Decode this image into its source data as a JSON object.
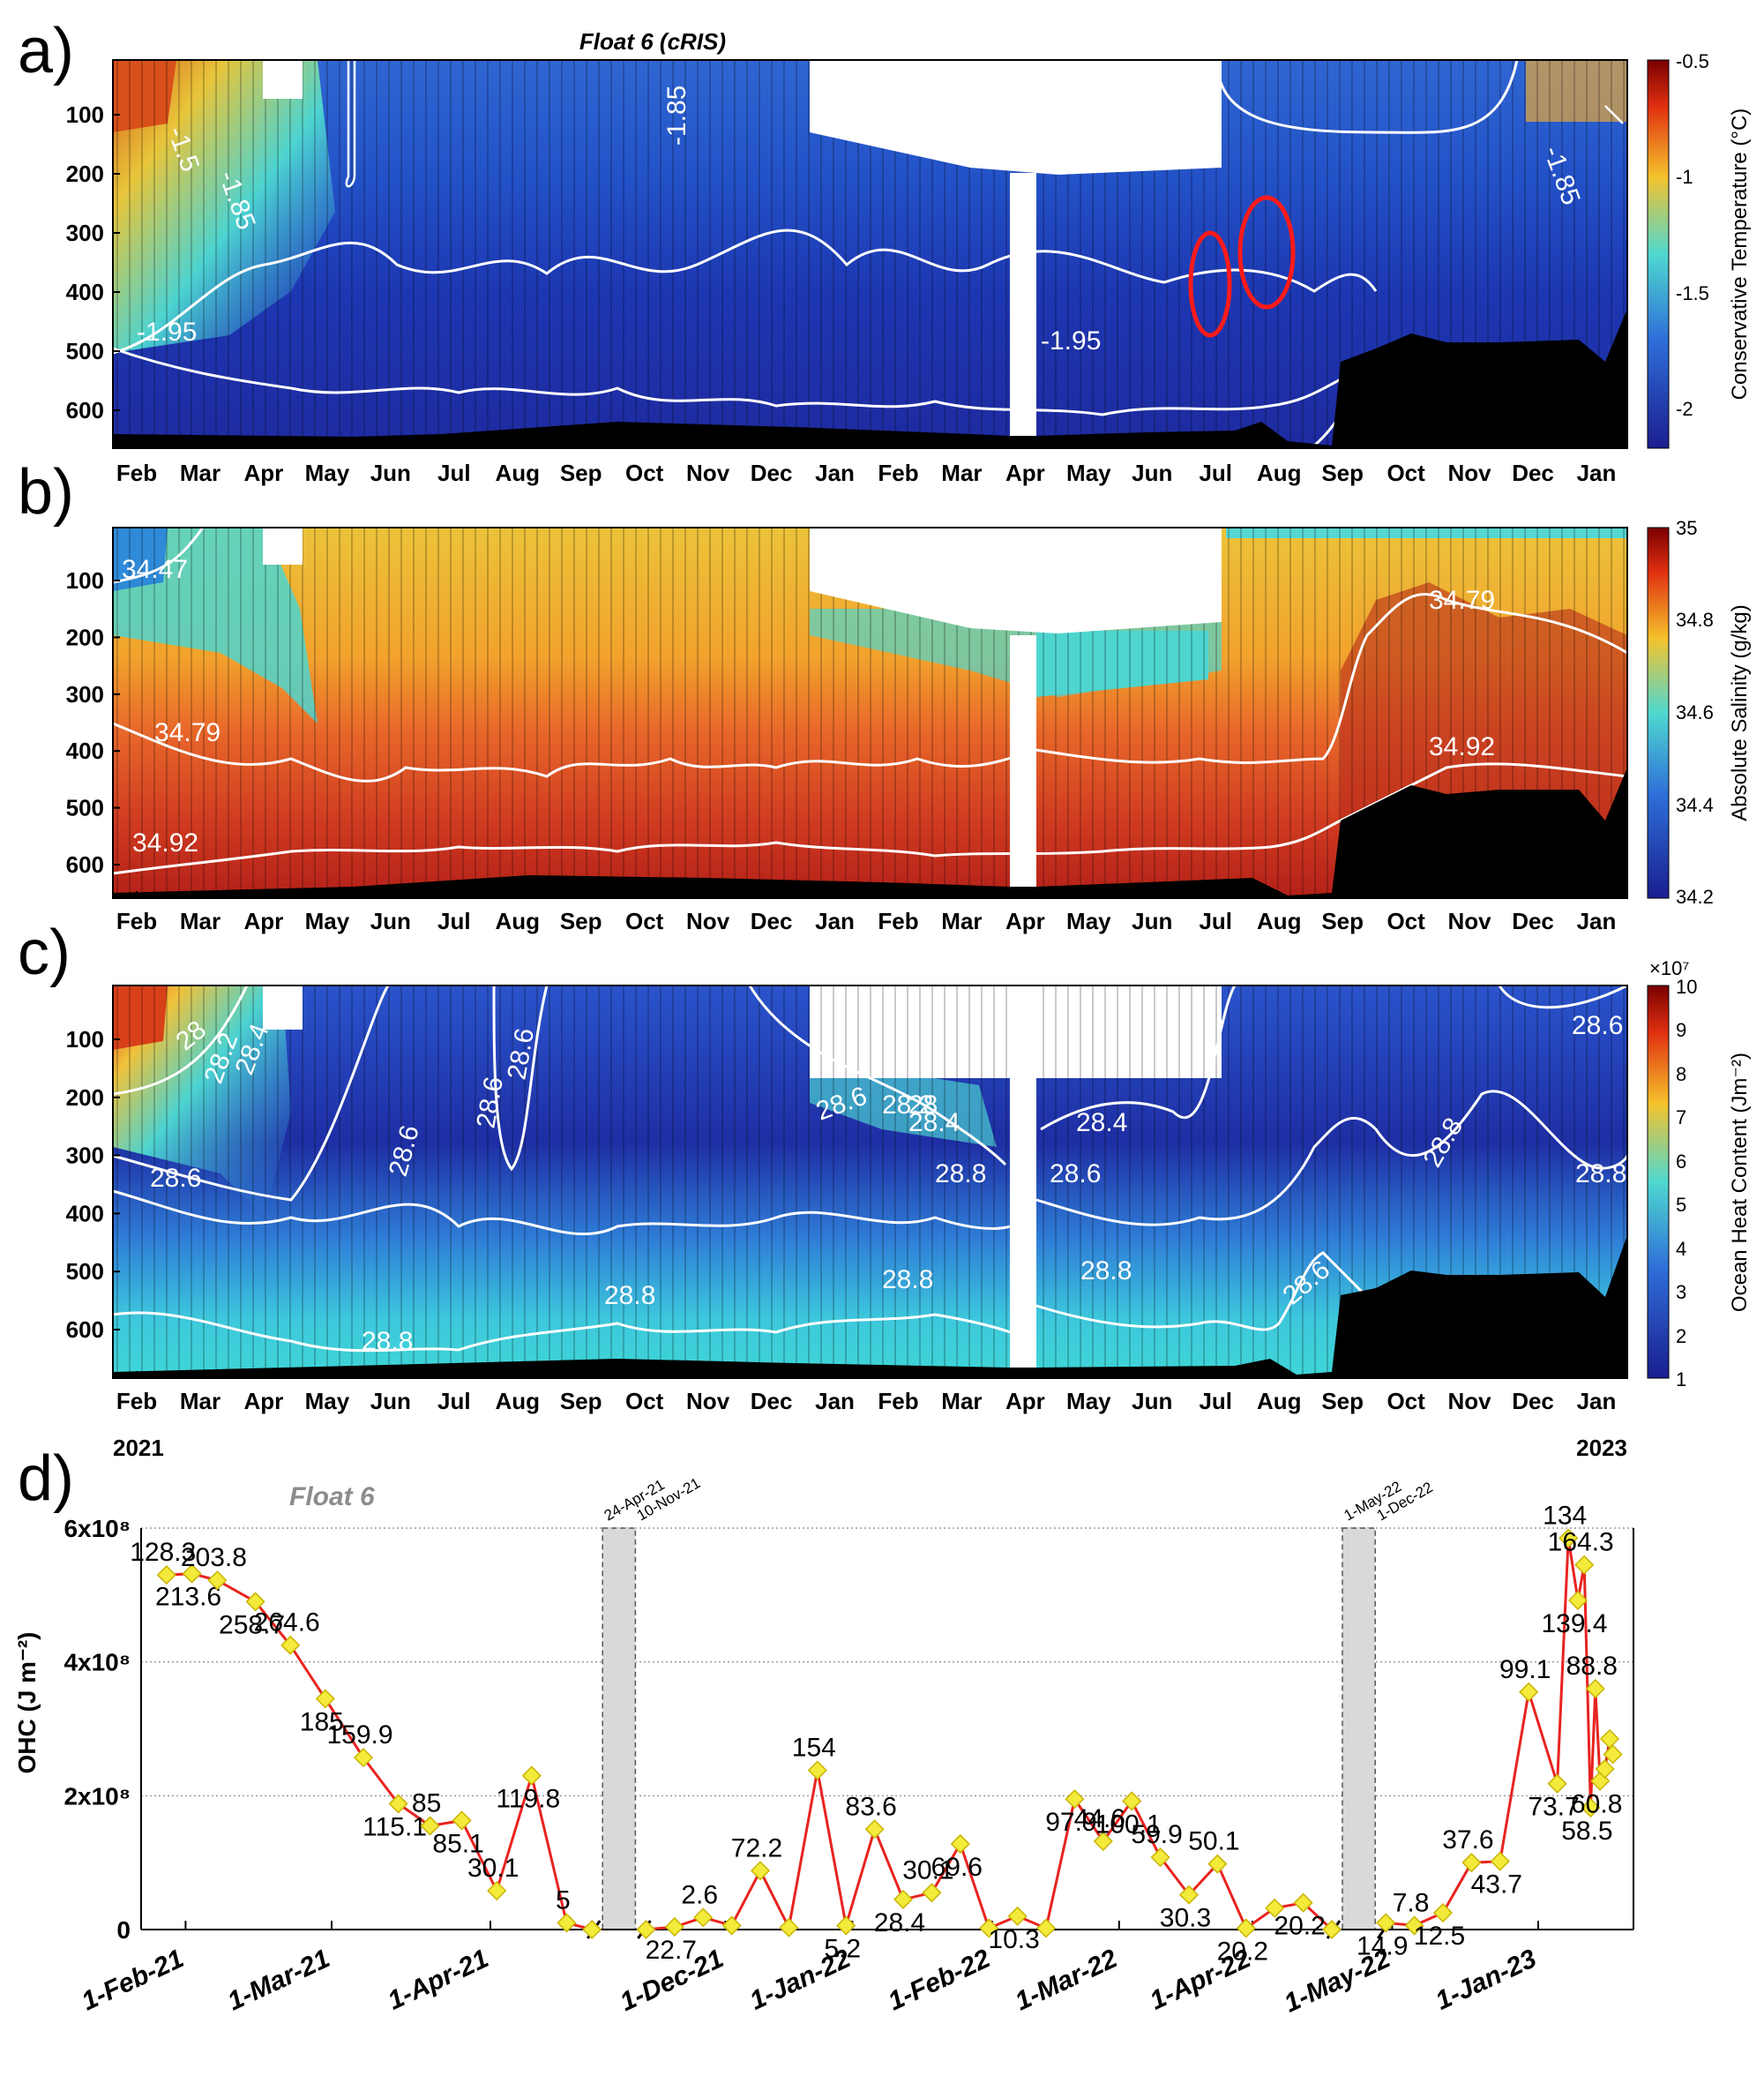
{
  "panels": [
    {
      "letter": "a)",
      "title": "Float 6 (cRIS)",
      "colorbar_label": "Conservative Temperature (°C)",
      "colorbar_ticks": [
        "-0.5",
        "-1",
        "-1.5",
        "-2"
      ],
      "contour_labels": [
        "-1.5",
        "-1.85",
        "-1.85",
        "-1.85",
        "-1.95",
        "-1.95"
      ]
    },
    {
      "letter": "b)",
      "colorbar_label": "Absolute Salinity (g/kg)",
      "colorbar_ticks": [
        "35",
        "34.8",
        "34.6",
        "34.4",
        "34.2"
      ],
      "contour_labels": [
        "34.47",
        "34.79",
        "34.92",
        "34.79",
        "34.92"
      ]
    },
    {
      "letter": "c)",
      "colorbar_label": "Ocean Heat Content (Jm⁻²)",
      "colorbar_exponent": "×10⁷",
      "colorbar_ticks": [
        "10",
        "9",
        "8",
        "7",
        "6",
        "5",
        "4",
        "3",
        "2",
        "1"
      ],
      "contour_labels": [
        "28",
        "28.2",
        "28.4",
        "28.6",
        "28.6",
        "28.6",
        "28.6",
        "28.6",
        "28.4",
        "28.2",
        "28",
        "28.4",
        "28.6",
        "28.8",
        "28.8",
        "28.8",
        "28.8",
        "28.8",
        "28.8",
        "28.6",
        "28.6",
        "28.8"
      ]
    },
    {
      "letter": "d)"
    }
  ],
  "shared_axes": {
    "depth_ticks": [
      "100",
      "200",
      "300",
      "400",
      "500",
      "600"
    ],
    "month_ticks": [
      "Feb",
      "Mar",
      "Apr",
      "May",
      "Jun",
      "Jul",
      "Aug",
      "Sep",
      "Oct",
      "Nov",
      "Dec",
      "Jan",
      "Feb",
      "Mar",
      "Apr",
      "May",
      "Jun",
      "Jul",
      "Aug",
      "Sep",
      "Oct",
      "Nov",
      "Dec",
      "Jan"
    ],
    "year_start": "2021",
    "year_end": "2023"
  },
  "colors": {
    "contour": "#ffffff",
    "seabed": "#000000",
    "line": "#e8231f",
    "marker": "#f3ea3b",
    "gap": "#d9d9d9",
    "highlight": "#ff1a1a",
    "float_label": "#8c8c8c"
  },
  "chart_data": {
    "type": "line",
    "title": "Float 6",
    "ylabel": "OHC (J m⁻²)",
    "ylim": [
      0,
      600000000
    ],
    "y_ticks": [
      {
        "value": 0,
        "label": "0"
      },
      {
        "value": 200000000,
        "label": "2x10⁸"
      },
      {
        "value": 400000000,
        "label": "4x10⁸"
      },
      {
        "value": 600000000,
        "label": "6x10⁸"
      }
    ],
    "x_ticks": [
      "1-Feb-21",
      "1-Mar-21",
      "1-Apr-21",
      "1-Dec-21",
      "1-Jan-22",
      "1-Feb-22",
      "1-Mar-22",
      "1-Apr-22",
      "1-May-22",
      "1-Jan-23"
    ],
    "gaps": [
      {
        "label_start": "24-Apr-21",
        "label_end": "10-Nov-21"
      },
      {
        "label_start": "1-May-22",
        "label_end": "1-Dec-22"
      }
    ],
    "series": [
      {
        "name": "OHC",
        "points": [
          {
            "t": 0,
            "value": 530000000,
            "label": "128.3"
          },
          {
            "t": 0.8,
            "value": 532000000,
            "label": "213.6"
          },
          {
            "t": 1.6,
            "value": 522000000,
            "label": "203.8"
          },
          {
            "t": 2.8,
            "value": 490000000,
            "label": "258.7"
          },
          {
            "t": 3.9,
            "value": 425000000,
            "label": "264.6"
          },
          {
            "t": 5.0,
            "value": 345000000,
            "label": "185"
          },
          {
            "t": 6.2,
            "value": 257000000,
            "label": "159.9"
          },
          {
            "t": 7.3,
            "value": 188000000,
            "label": "115.1"
          },
          {
            "t": 8.3,
            "value": 155000000,
            "label": "85"
          },
          {
            "t": 9.3,
            "value": 163000000,
            "label": "85.1"
          },
          {
            "t": 10.4,
            "value": 58000000,
            "label": "30.1"
          },
          {
            "t": 11.5,
            "value": 230000000,
            "label": "119.8"
          },
          {
            "t": 12.6,
            "value": 10000000,
            "label": "5"
          },
          {
            "t": 13.4,
            "value": 0,
            "label": ""
          },
          {
            "t": 15.1,
            "value": 0,
            "label": ""
          },
          {
            "t": 16.0,
            "value": 4000000,
            "label": "22.7"
          },
          {
            "t": 16.9,
            "value": 18000000,
            "label": "2.6"
          },
          {
            "t": 17.8,
            "value": 6000000,
            "label": ""
          },
          {
            "t": 18.7,
            "value": 88000000,
            "label": "72.2"
          },
          {
            "t": 19.6,
            "value": 3000000,
            "label": ""
          },
          {
            "t": 20.5,
            "value": 238000000,
            "label": "154"
          },
          {
            "t": 21.4,
            "value": 6000000,
            "label": "5.2"
          },
          {
            "t": 22.3,
            "value": 150000000,
            "label": "83.6"
          },
          {
            "t": 23.2,
            "value": 45000000,
            "label": "28.4"
          },
          {
            "t": 24.1,
            "value": 55000000,
            "label": "30.1"
          },
          {
            "t": 25.0,
            "value": 128000000,
            "label": "69.6"
          },
          {
            "t": 25.9,
            "value": 2000000,
            "label": ""
          },
          {
            "t": 26.8,
            "value": 20000000,
            "label": "10.3"
          },
          {
            "t": 27.7,
            "value": 2000000,
            "label": ""
          },
          {
            "t": 28.6,
            "value": 195000000,
            "label": "97.9"
          },
          {
            "t": 29.5,
            "value": 132000000,
            "label": "44.6"
          },
          {
            "t": 30.4,
            "value": 192000000,
            "label": "100.1"
          },
          {
            "t": 31.3,
            "value": 108000000,
            "label": "59.9"
          },
          {
            "t": 32.2,
            "value": 52000000,
            "label": "30.3"
          },
          {
            "t": 33.1,
            "value": 98000000,
            "label": "50.1"
          },
          {
            "t": 34.0,
            "value": 2000000,
            "label": "20.2"
          },
          {
            "t": 34.9,
            "value": 32000000,
            "label": ""
          },
          {
            "t": 35.8,
            "value": 40000000,
            "label": "20.2"
          },
          {
            "t": 36.7,
            "value": 0,
            "label": ""
          },
          {
            "t": 38.4,
            "value": 10000000,
            "label": "14.9"
          },
          {
            "t": 39.3,
            "value": 6000000,
            "label": "7.8"
          },
          {
            "t": 40.2,
            "value": 25000000,
            "label": "12.5"
          },
          {
            "t": 41.1,
            "value": 100000000,
            "label": "37.6"
          },
          {
            "t": 42.0,
            "value": 102000000,
            "label": "43.7"
          },
          {
            "t": 42.9,
            "value": 355000000,
            "label": "99.1"
          },
          {
            "t": 43.8,
            "value": 218000000,
            "label": "73.7"
          },
          {
            "t": 44.15,
            "value": 585000000,
            "label": "134"
          },
          {
            "t": 44.45,
            "value": 492000000,
            "label": "139.4"
          },
          {
            "t": 44.65,
            "value": 545000000,
            "label": "164.3"
          },
          {
            "t": 44.85,
            "value": 182000000,
            "label": "58.5"
          },
          {
            "t": 45.0,
            "value": 360000000,
            "label": "88.8"
          },
          {
            "t": 45.15,
            "value": 222000000,
            "label": "60.8"
          },
          {
            "t": 45.3,
            "value": 240000000,
            "label": ""
          },
          {
            "t": 45.45,
            "value": 285000000,
            "label": ""
          },
          {
            "t": 45.55,
            "value": 262000000,
            "label": ""
          }
        ]
      }
    ]
  }
}
